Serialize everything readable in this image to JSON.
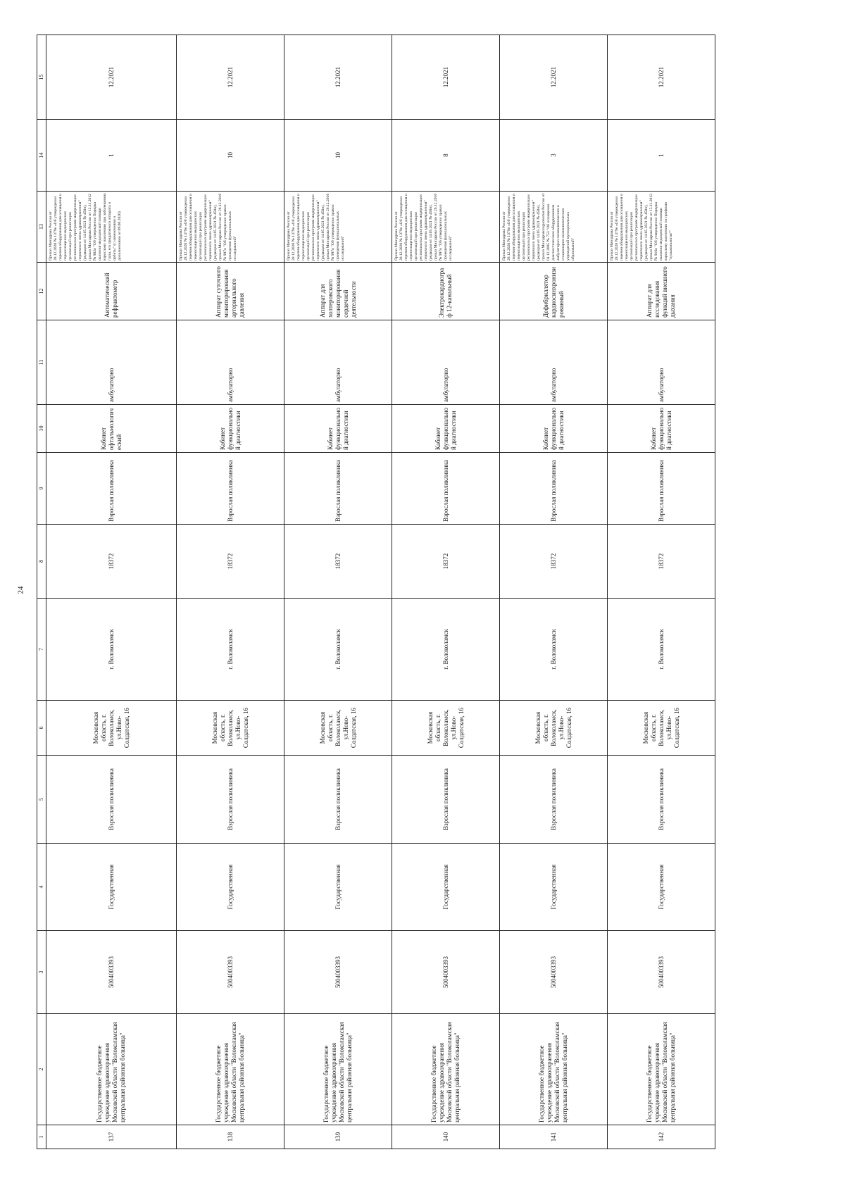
{
  "page_number": "24",
  "table": {
    "column_numbers": [
      "1",
      "2",
      "3",
      "4",
      "5",
      "6",
      "7",
      "8",
      "9",
      "10",
      "11",
      "12",
      "13",
      "14",
      "15"
    ],
    "rows": [
      {
        "cells": [
          "137",
          "Государственное бюджетное учреждение здравоохранения Московской области \"Волоколамская центральная районная больница\"",
          "5004003393",
          "Государственная",
          "Взрослая поликлиника",
          "Московская область, г. Волоколамск, ул.Ново-Солдатская, 16",
          "г. Волоколамск",
          "18372",
          "Взрослая поликлиника",
          "Кабинет офтальмологический",
          "амбулаторно",
          "Автоматический рефрактометр",
          "Приказ Минздрава России от 28.12.2020 № 1379н «Об утверждении перечня оборудования для оснащения и переоснащения медицинских организаций при реализации региональных программ модернизации первичного звена здравоохранения\"(редакция от 14.05.2021 № 450н), приказ Минздрава России от 12.11.2012 № 902н \"Об утверждении Порядка оказания медицинской помощи взрослому населению при заболеваниях глаза, его придаточного аппарата и орбиты\" (с изменениями и дополнениями от 09.06.2020)",
          "1",
          "12.2021"
        ]
      },
      {
        "cells": [
          "138",
          "Государственное бюджетное учреждение здравоохранения Московской области \"Волоколамская центральная районная больница\"",
          "5004003393",
          "Государственная",
          "Взрослая поликлиника",
          "Московская область, г. Волоколамск, ул.Ново-Солдатская, 16",
          "г. Волоколамск",
          "18372",
          "Взрослая поликлиника",
          "Кабинет функциональной диагностики",
          "амбулаторно",
          "Аппарат суточного мониторирования артериального давления",
          "Приказ Минздрава России от 28.12.2020 № 1379н «Об утверждении перечня оборудования для оснащения и переоснащения медицинских организаций при реализации региональных программ модернизации первичного звена здравоохранения\"(редакция от 14.05.2021 № 450н), приказ Минздрава России от 26.12.2016 № 997н \"Об утверждении правил проведения функциональных исследований\"",
          "10",
          "12.2021"
        ]
      },
      {
        "cells": [
          "139",
          "Государственное бюджетное учреждение здравоохранения Московской области \"Волоколамская центральная районная больница\"",
          "5004003393",
          "Государственная",
          "Взрослая поликлиника",
          "Московская область, г. Волоколамск, ул.Ново-Солдатская, 16",
          "г. Волоколамск",
          "18372",
          "Взрослая поликлиника",
          "Кабинет функциональной диагностики",
          "амбулаторно",
          "Аппарат для холтеровского мониторирования сердечной деятельности",
          "Приказ Минздрава России от 28.12.2020 № 1379н «Об утверждении перечня оборудования для оснащения и переоснащения медицинских организаций при реализации региональных программ модернизации первичного звена здравоохранения\"(редакция от 14.05.2021 № 450н), приказ Минздрава России от 26.12.2016 № 997н \"Об утверждении правил проведения функциональных исследований\"",
          "10",
          "12.2021"
        ]
      },
      {
        "cells": [
          "140",
          "Государственное бюджетное учреждение здравоохранения Московской области \"Волоколамская центральная районная больница\"",
          "5004003393",
          "Государственная",
          "Взрослая поликлиника",
          "Московская область, г. Волоколамск, ул.Ново-Солдатская, 16",
          "г. Волоколамск",
          "18372",
          "Взрослая поликлиника",
          "Кабинет функциональной диагностики",
          "амбулаторно",
          "Электрокардиограф 12-канальный",
          "Приказ Минздрава России от 28.12.2020 № 1379н «Об утверждении перечня оборудования для оснащения и переоснащения медицинских организаций при реализации региональных программ модернизации первичного звена здравоохранения\"(редакция от 14.05.2021 № 450н), приказ Минздрава России от 26.12.2016 № 997н \"Об утверждении правил проведения функциональных исследований\"",
          "8",
          "12.2021"
        ]
      },
      {
        "cells": [
          "141",
          "Государственное бюджетное учреждение здравоохранения Московской области \"Волоколамская центральная районная больница\"",
          "5004003393",
          "Государственная",
          "Взрослая поликлиника",
          "Московская область, г. Волоколамск, ул.Ново-Солдатская, 16",
          "г. Волоколамск",
          "18372",
          "Взрослая поликлиника",
          "Кабинет функциональной диагностики",
          "амбулаторно",
          "Дефибриллятор кардиосинхронизированный",
          "Приказ Минздрава России от 28.12.2020 № 1379н «Об утверждении перечня оборудования для оснащения и переоснащения медицинских организаций при реализации региональных программ модернизации первичного звена здравоохранения\"(редакция от 14.05.2021 № 450н), приказ Минздравсоцразвития России от 01.12.2005 № 753 \"Об оснащении диагностическим оборудованием амбулаторно-поликлинических и стационарно-поликлинических учреждений муниципальных образований\"",
          "3",
          "12.2021"
        ]
      },
      {
        "cells": [
          "142",
          "Государственное бюджетное учреждение здравоохранения Московской области \"Волоколамская центральная районная больница\"",
          "5004003393",
          "Государственная",
          "Взрослая поликлиника",
          "Московская область, г. Волоколамск, ул.Ново-Солдатская, 16",
          "г. Волоколамск",
          "18372",
          "Взрослая поликлиника",
          "Кабинет функциональной диагностики",
          "амбулаторно",
          "Аппарат для исследования функций внешнего дыхания",
          "Приказ Минздрава России от 28.12.2020 № 1379н «Об утверждении перечня оборудования для оснащения и переоснащения медицинских организаций при реализации региональных программ модернизации первичного звена здравоохранения\"(редакция от 14.05.2021 № 450н), приказ Минздрава России от 15.11.2012 № 916н \"Об утверждении Порядка оказания медицинской помощи взрослому населению по профилю \"пульмонология\"\"",
          "1",
          "12.2021"
        ]
      }
    ]
  }
}
